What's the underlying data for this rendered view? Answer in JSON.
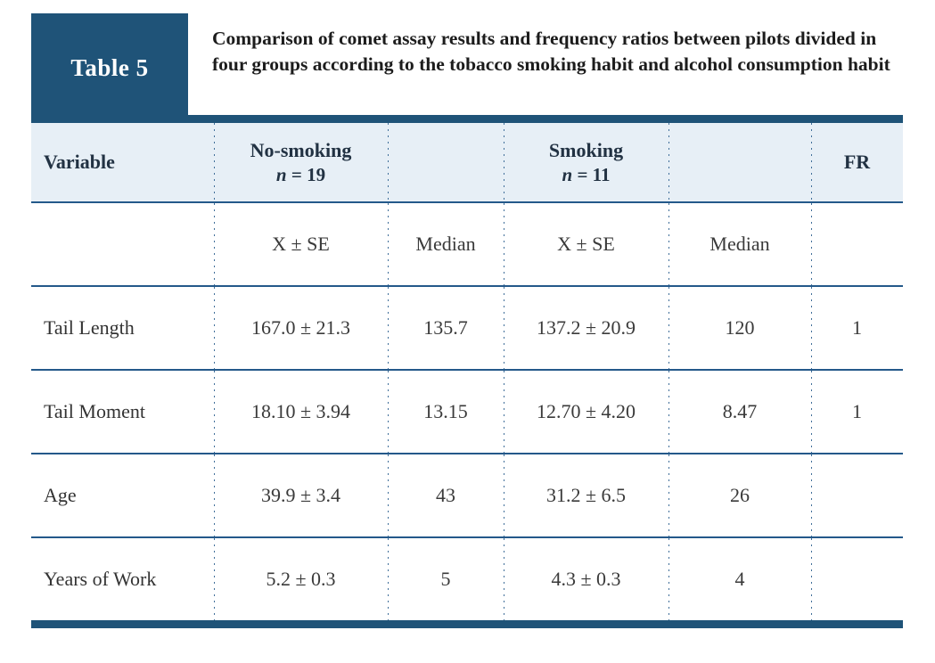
{
  "table_label": "Table 5",
  "caption": "Comparison of comet assay results and frequency ratios between pilots divided in four groups according to the tobacco smoking habit and alcohol consumption habit",
  "colors": {
    "navy": "#1f5378",
    "row_line": "#24598a",
    "dotted_line": "#3f6e99",
    "header_bg": "#e7eff6"
  },
  "header": {
    "variable": "Variable",
    "group1": {
      "name": "No-smoking",
      "n": "n",
      "count": "= 19"
    },
    "group2": {
      "name": "Smoking",
      "n": "n",
      "count": "= 11"
    },
    "fr": "FR"
  },
  "subheader": {
    "xse1": "X ± SE",
    "median1": "Median",
    "xse2": "X ± SE",
    "median2": "Median"
  },
  "rows": [
    {
      "variable": "Tail Length",
      "ns_xse": "167.0 ± 21.3",
      "ns_median": "135.7",
      "s_xse": "137.2 ± 20.9",
      "s_median": "120",
      "fr": "1"
    },
    {
      "variable": "Tail Moment",
      "ns_xse": "18.10 ± 3.94",
      "ns_median": "13.15",
      "s_xse": "12.70 ± 4.20",
      "s_median": "8.47",
      "fr": "1"
    },
    {
      "variable": "Age",
      "ns_xse": "39.9 ± 3.4",
      "ns_median": "43",
      "s_xse": "31.2 ± 6.5",
      "s_median": "26",
      "fr": ""
    },
    {
      "variable": "Years of Work",
      "ns_xse": "5.2 ± 0.3",
      "ns_median": "5",
      "s_xse": "4.3 ± 0.3",
      "s_median": "4",
      "fr": ""
    }
  ]
}
